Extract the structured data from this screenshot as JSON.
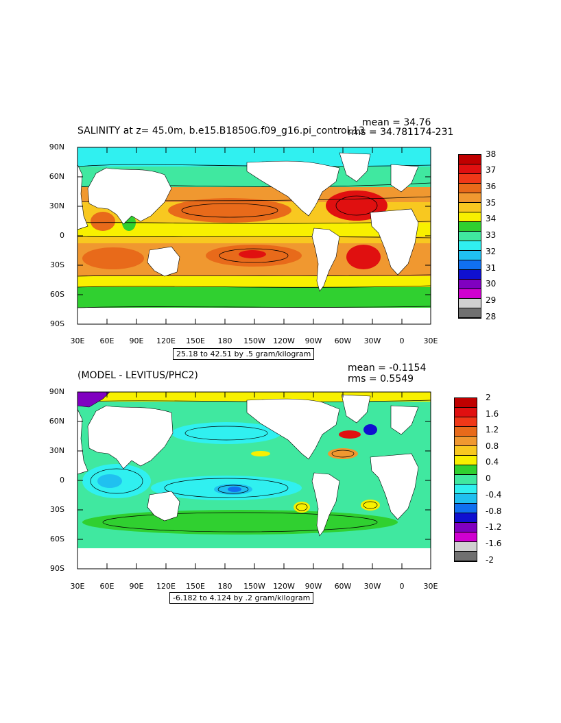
{
  "panel1": {
    "title": "SALINITY at z=  45.0m, b.e15.B1850G.f09_g16.pi_control.13",
    "title_overlap": "1174-231",
    "mean_label": "mean = 34.76",
    "rms_label": "rms = 34.78",
    "range_label": "25.18 to 42.51 by .5 gram/kilogram",
    "lat_labels": [
      "90N",
      "60N",
      "30N",
      "0",
      "30S",
      "60S",
      "90S"
    ],
    "lon_labels": [
      "30E",
      "60E",
      "90E",
      "120E",
      "150E",
      "180",
      "150W",
      "120W",
      "90W",
      "60W",
      "30W",
      "0",
      "30E"
    ],
    "colorbar": {
      "labels": [
        "38",
        "37",
        "36",
        "35",
        "34",
        "33",
        "32",
        "31",
        "30",
        "29",
        "28"
      ],
      "colors": [
        "#c00000",
        "#e01010",
        "#f03818",
        "#e86a1a",
        "#f09830",
        "#f8c820",
        "#f8f000",
        "#30d030",
        "#40e8a0",
        "#30f0f0",
        "#20c0f0",
        "#1070f0",
        "#1010d0",
        "#8000c0",
        "#d000d0",
        "#d0d0d0",
        "#707070"
      ]
    }
  },
  "panel2": {
    "title": "(MODEL - LEVITUS/PHC2)",
    "mean_label": "mean = -0.1154",
    "rms_label": "rms = 0.5549",
    "range_label": "-6.182 to 4.124 by .2 gram/kilogram",
    "lat_labels": [
      "90N",
      "60N",
      "30N",
      "0",
      "30S",
      "60S",
      "90S"
    ],
    "lon_labels": [
      "30E",
      "60E",
      "90E",
      "120E",
      "150E",
      "180",
      "150W",
      "120W",
      "90W",
      "60W",
      "30W",
      "0",
      "30E"
    ],
    "colorbar": {
      "labels": [
        "2",
        "1.6",
        "1.2",
        "0.8",
        "0.4",
        "0",
        "-0.4",
        "-0.8",
        "-1.2",
        "-1.6",
        "-2"
      ],
      "colors": [
        "#c00000",
        "#e01010",
        "#f03818",
        "#e86a1a",
        "#f09830",
        "#f8c820",
        "#f8f000",
        "#30d030",
        "#40e8a0",
        "#30f0f0",
        "#20c0f0",
        "#1070f0",
        "#1010d0",
        "#8000c0",
        "#d000d0",
        "#d0d0d0",
        "#707070"
      ]
    }
  },
  "colors": {
    "land": "#ffffff",
    "panel1_ocean_base": "#f8c820",
    "panel2_ocean_base": "#40e8a0"
  }
}
